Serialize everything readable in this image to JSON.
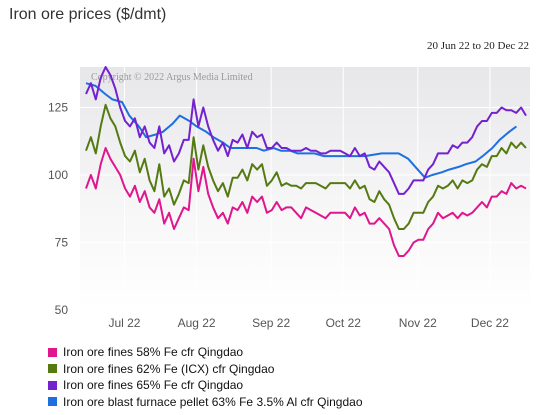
{
  "chart_data": {
    "type": "line",
    "title": "Iron ore prices ($/dmt)",
    "date_range": "20 Jun 22 to 20 Dec 22",
    "copyright": "Copyright © 2022 Argus Media Limited",
    "ylim": [
      50,
      140
    ],
    "yticks": [
      50,
      75,
      100,
      125
    ],
    "xtick_labels": [
      "Jul 22",
      "Aug 22",
      "Sep 22",
      "Oct 22",
      "Nov 22",
      "Dec 22"
    ],
    "grid": true,
    "legend_position": "bottom",
    "series": [
      {
        "name": "Iron ore fines 58% Fe cfr Qingdao",
        "color": "#e0168f",
        "values": [
          95,
          100,
          95,
          104,
          110,
          106,
          103,
          100,
          95,
          92,
          96,
          90,
          94,
          88,
          86,
          91,
          82,
          86,
          80,
          84,
          88,
          87,
          106,
          94,
          103,
          93,
          88,
          84,
          86,
          82,
          88,
          87,
          90,
          86,
          92,
          90,
          92,
          86,
          87,
          90,
          87,
          88,
          88,
          86,
          84,
          88,
          87,
          86,
          85,
          84,
          86,
          86,
          86,
          86,
          84,
          88,
          85,
          86,
          82,
          82,
          84,
          82,
          80,
          74,
          70,
          70,
          72,
          75,
          76,
          76,
          80,
          82,
          86,
          84,
          85,
          86,
          84,
          86,
          85,
          86,
          88,
          90,
          88,
          92,
          92,
          94,
          93,
          97,
          95,
          96,
          95
        ]
      },
      {
        "name": "Iron ore fines 62% Fe (ICX) cfr Qingdao",
        "color": "#557a12",
        "values": [
          109,
          114,
          108,
          118,
          126,
          121,
          118,
          112,
          107,
          105,
          109,
          101,
          106,
          98,
          94,
          104,
          92,
          95,
          89,
          93,
          98,
          97,
          114,
          102,
          111,
          103,
          98,
          94,
          97,
          92,
          99,
          99,
          102,
          98,
          104,
          102,
          104,
          96,
          98,
          101,
          96,
          97,
          96,
          96,
          95,
          97,
          97,
          97,
          96,
          95,
          97,
          97,
          97,
          97,
          95,
          98,
          95,
          96,
          91,
          90,
          94,
          91,
          89,
          84,
          80,
          80,
          82,
          86,
          86,
          86,
          90,
          92,
          96,
          95,
          96,
          98,
          95,
          98,
          97,
          98,
          102,
          104,
          103,
          107,
          107,
          110,
          108,
          112,
          110,
          112,
          110
        ]
      },
      {
        "name": "Iron ore fines 65% Fe cfr Qingdao",
        "color": "#7421cf",
        "values": [
          130,
          134,
          128,
          136,
          140,
          137,
          132,
          125,
          120,
          118,
          121,
          114,
          118,
          112,
          110,
          118,
          108,
          111,
          105,
          108,
          113,
          113,
          128,
          118,
          125,
          118,
          113,
          109,
          112,
          107,
          113,
          112,
          115,
          110,
          116,
          114,
          115,
          110,
          110,
          112,
          110,
          110,
          109,
          109,
          109,
          110,
          109,
          109,
          108,
          108,
          109,
          109,
          109,
          108,
          107,
          110,
          107,
          108,
          103,
          102,
          105,
          103,
          101,
          97,
          93,
          93,
          95,
          98,
          98,
          98,
          102,
          104,
          108,
          108,
          108,
          111,
          110,
          112,
          112,
          114,
          118,
          120,
          120,
          123,
          123,
          125,
          124,
          124,
          123,
          125,
          122
        ]
      },
      {
        "name": "Iron ore blast furnace pellet 63% Fe 3.5% Al cfr Qingdao",
        "color": "#1e6fe0",
        "x_dates": [
          "2022-06-20",
          "2022-06-24",
          "2022-06-28",
          "2022-07-01",
          "2022-07-05",
          "2022-07-08",
          "2022-07-12",
          "2022-07-15",
          "2022-07-19",
          "2022-07-22",
          "2022-07-26",
          "2022-07-29",
          "2022-08-02",
          "2022-08-05",
          "2022-08-09",
          "2022-08-12",
          "2022-08-16",
          "2022-08-19",
          "2022-08-23",
          "2022-08-26",
          "2022-08-30",
          "2022-09-02",
          "2022-09-06",
          "2022-09-09",
          "2022-09-13",
          "2022-09-16",
          "2022-09-20",
          "2022-09-23",
          "2022-09-27",
          "2022-09-30",
          "2022-10-07",
          "2022-10-14",
          "2022-10-21",
          "2022-10-28",
          "2022-11-01",
          "2022-11-04",
          "2022-11-08",
          "2022-11-11",
          "2022-11-15",
          "2022-11-18",
          "2022-11-22",
          "2022-11-25",
          "2022-11-29",
          "2022-12-02",
          "2022-12-06",
          "2022-12-09",
          "2022-12-13",
          "2022-12-16"
        ],
        "values": [
          134,
          133,
          130,
          128,
          127,
          122,
          118,
          114,
          115,
          116,
          119,
          122,
          120,
          118,
          116,
          114,
          112,
          110,
          110,
          110,
          110,
          109,
          110,
          109,
          109,
          108,
          108,
          108,
          107,
          107,
          107,
          107,
          108,
          108,
          106,
          103,
          99,
          100,
          101,
          102,
          103,
          104,
          105,
          107,
          110,
          113,
          116,
          118
        ]
      }
    ]
  }
}
